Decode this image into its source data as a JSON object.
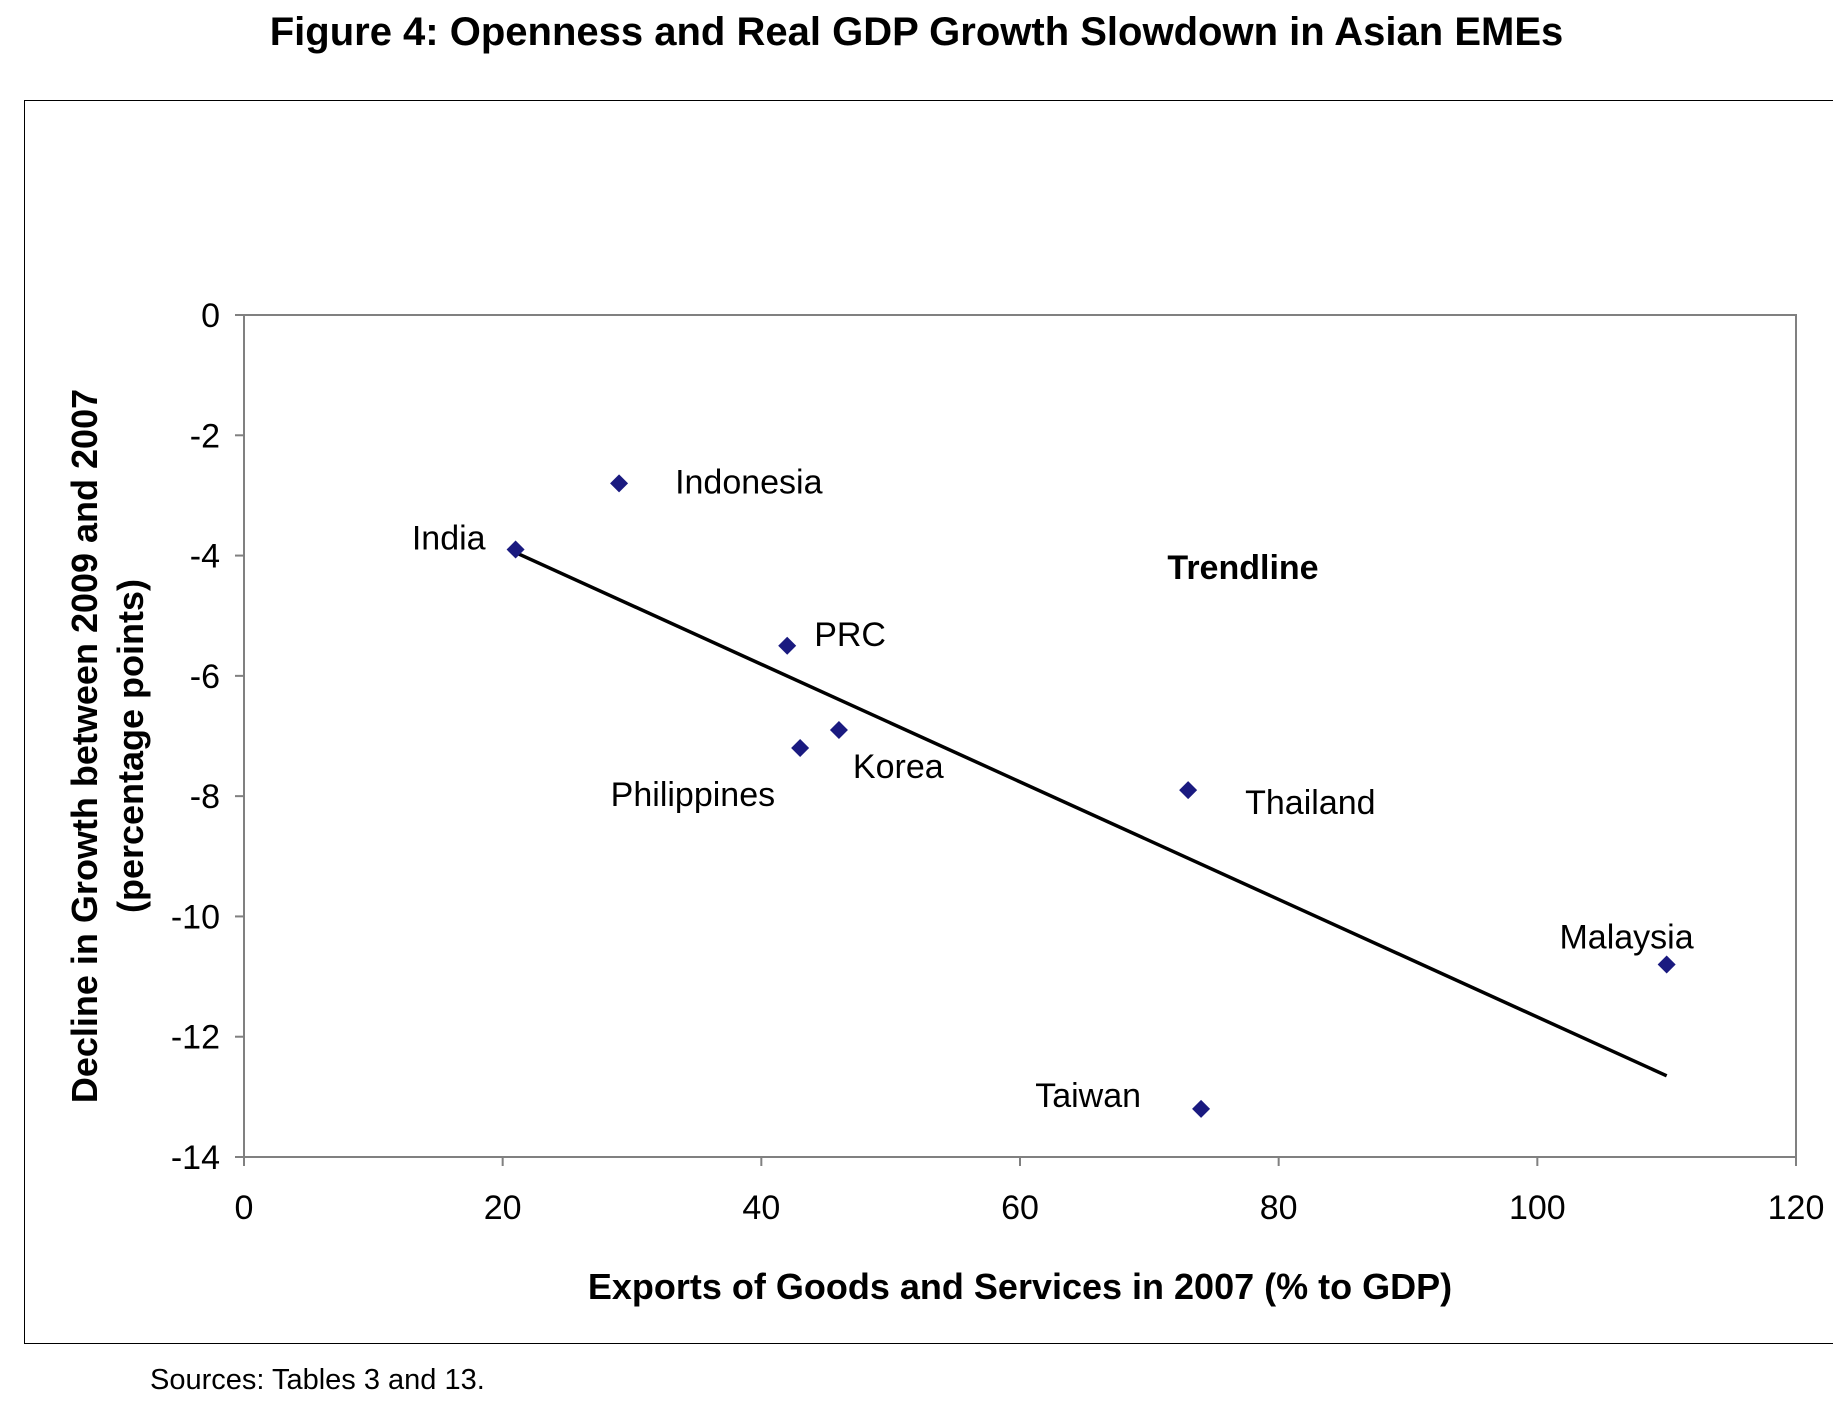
{
  "figure_title": "Figure 4: Openness and Real GDP Growth Slowdown in Asian EMEs",
  "sources": "Sources: Tables 3 and 13.",
  "chart_data": {
    "type": "scatter",
    "xlabel": "Exports of Goods and Services in 2007 (% to GDP)",
    "ylabel_lines": [
      "Decline in Growth between 2009 and 2007",
      "(percentage points)"
    ],
    "xlim": [
      0,
      120
    ],
    "ylim": [
      -14,
      0
    ],
    "x_ticks": [
      0,
      20,
      40,
      60,
      80,
      100,
      120
    ],
    "y_ticks": [
      0,
      -2,
      -4,
      -6,
      -8,
      -10,
      -12,
      -14
    ],
    "marker": "diamond",
    "marker_color": "#1a1a80",
    "points": [
      {
        "label": "India",
        "x": 21,
        "y": -3.9
      },
      {
        "label": "Indonesia",
        "x": 29,
        "y": -2.8
      },
      {
        "label": "PRC",
        "x": 42,
        "y": -5.5
      },
      {
        "label": "Philippines",
        "x": 43,
        "y": -7.2
      },
      {
        "label": "Korea",
        "x": 46,
        "y": -6.9
      },
      {
        "label": "Thailand",
        "x": 73,
        "y": -7.9
      },
      {
        "label": "Taiwan",
        "x": 74,
        "y": -13.2
      },
      {
        "label": "Malaysia",
        "x": 110,
        "y": -10.8
      }
    ],
    "trendline": {
      "label": "Trendline",
      "x": [
        21,
        110
      ],
      "y": [
        -3.95,
        -12.65
      ],
      "color": "#000000"
    },
    "grid": false,
    "legend": "none"
  }
}
